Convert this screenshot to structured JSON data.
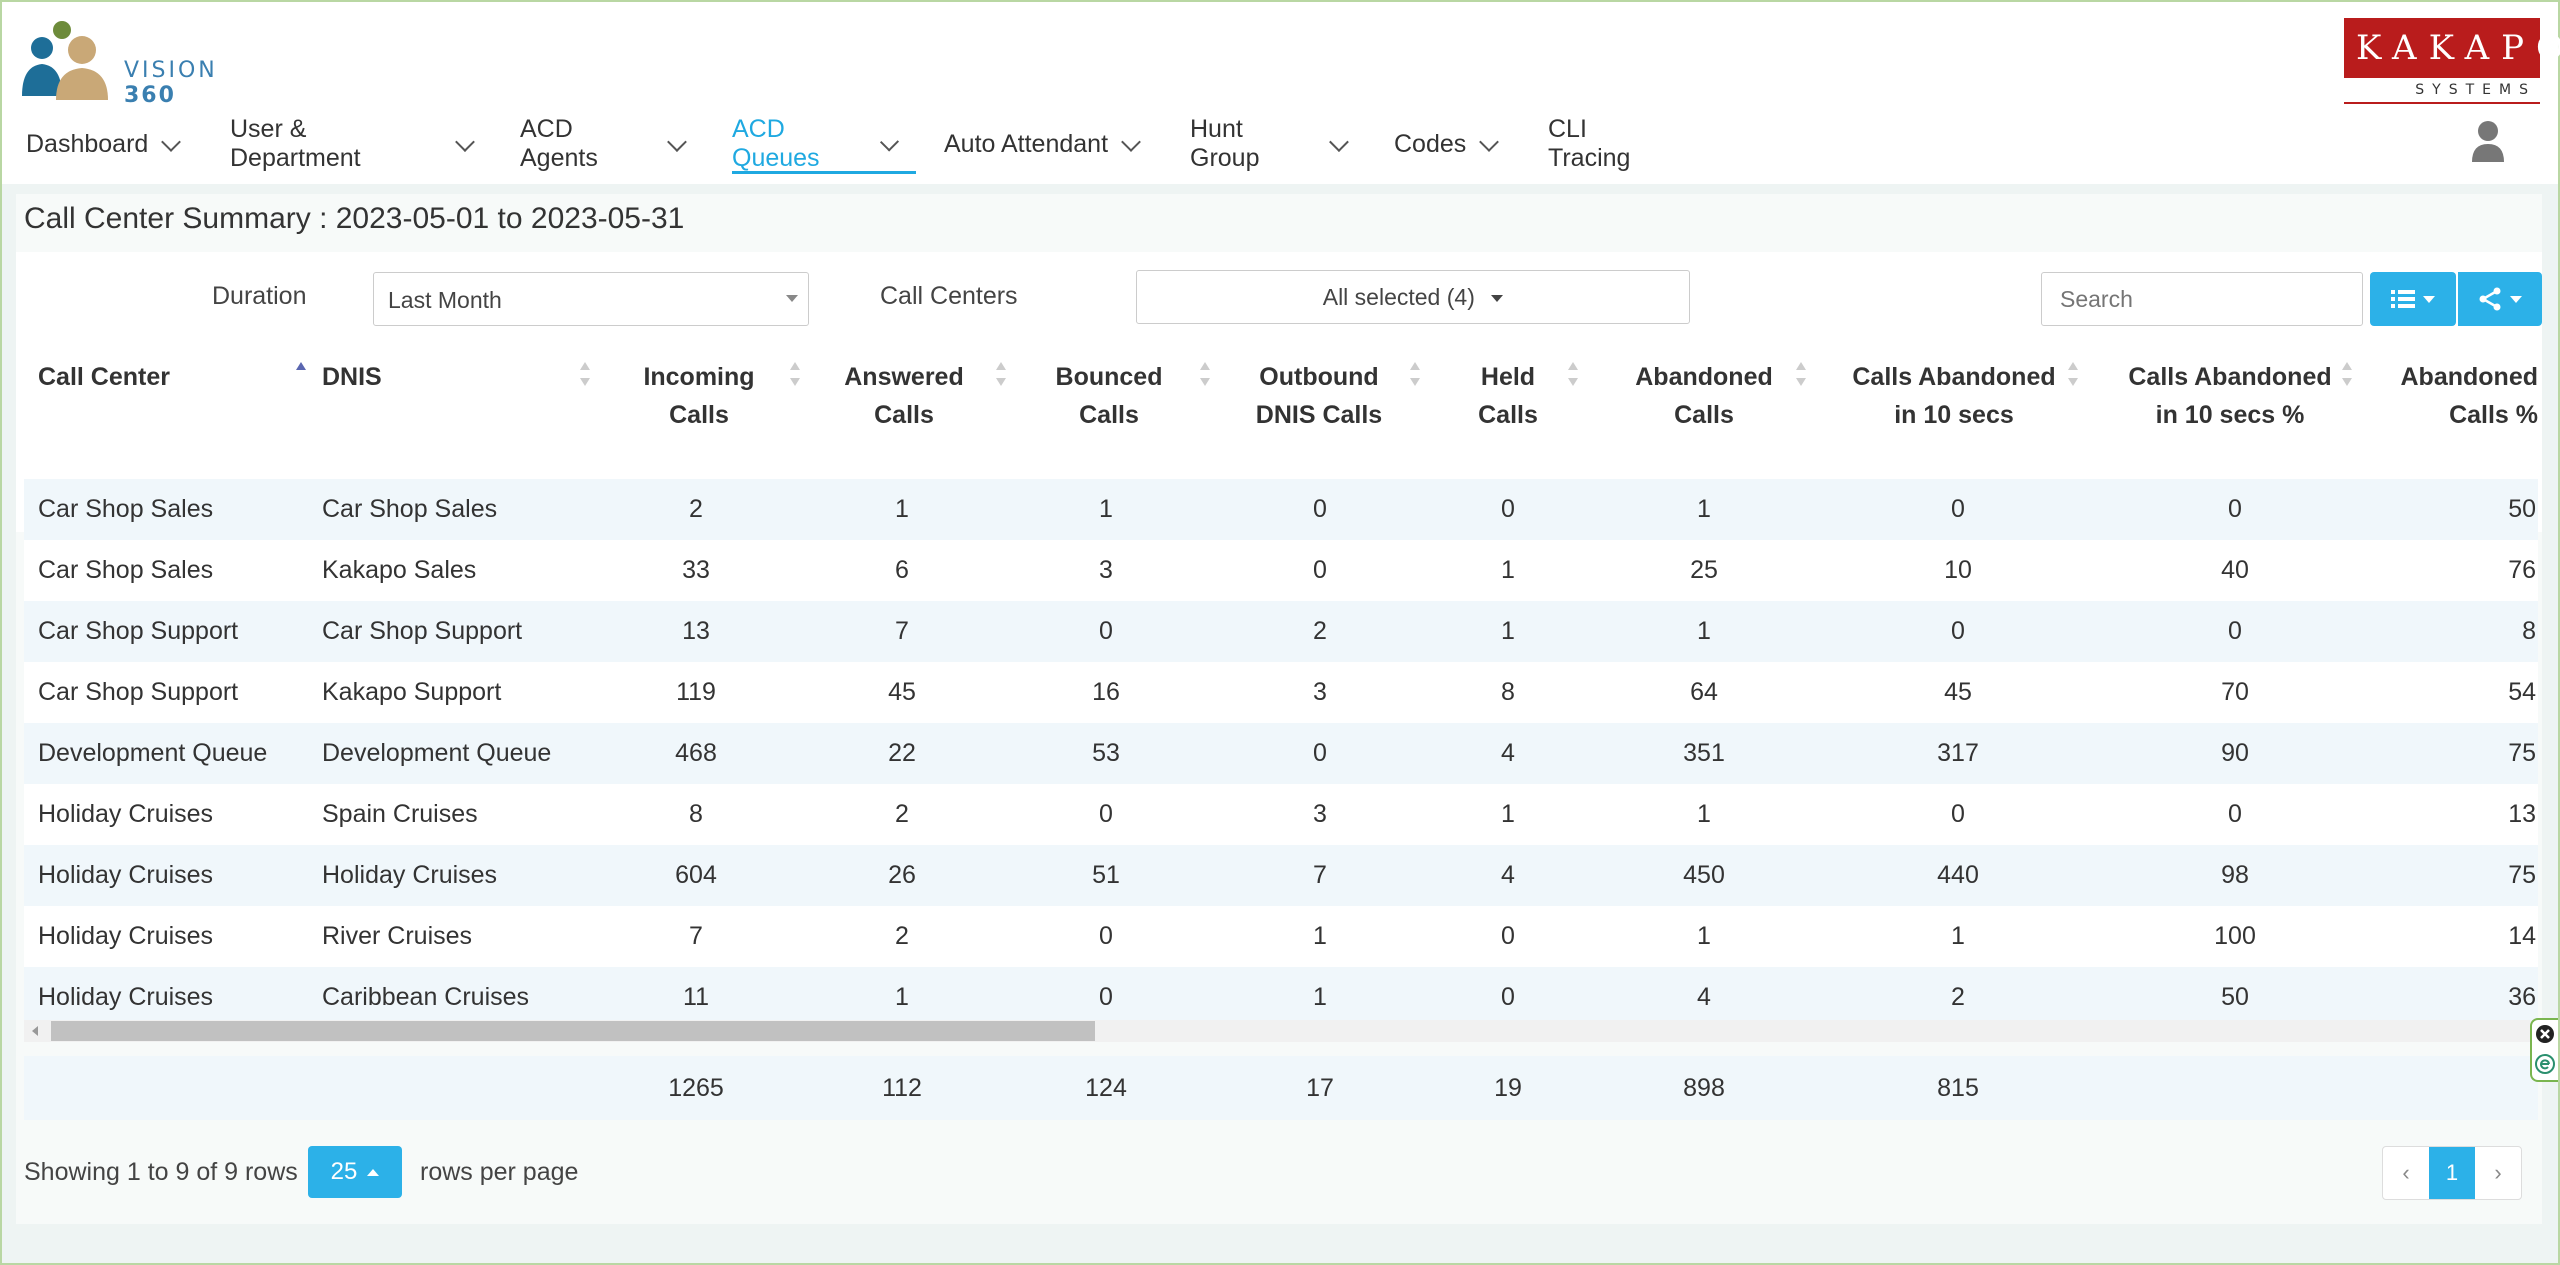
{
  "app": {
    "logo_text": "VISION",
    "logo_num": "360",
    "brand": "KAKAPO",
    "brand_sub": "SYSTEMS"
  },
  "nav": [
    {
      "label": "Dashboard",
      "dropdown": true
    },
    {
      "label": "User & Department",
      "dropdown": true
    },
    {
      "label": "ACD Agents",
      "dropdown": true
    },
    {
      "label": "ACD Queues",
      "dropdown": true,
      "active": true
    },
    {
      "label": "Auto Attendant",
      "dropdown": true
    },
    {
      "label": "Hunt Group",
      "dropdown": true
    },
    {
      "label": "Codes",
      "dropdown": true
    },
    {
      "label": "CLI Tracing",
      "dropdown": false
    }
  ],
  "page": {
    "title": "Call Center Summary : 2023-05-01 to 2023-05-31"
  },
  "filters": {
    "duration_label": "Duration",
    "duration_value": "Last Month",
    "call_centers_label": "Call Centers",
    "call_centers_value": "All selected (4)",
    "search_placeholder": "Search"
  },
  "table": {
    "headers": [
      [
        "Call Center"
      ],
      [
        "DNIS"
      ],
      [
        "Incoming",
        "Calls"
      ],
      [
        "Answered",
        "Calls"
      ],
      [
        "Bounced",
        "Calls"
      ],
      [
        "Outbound",
        "DNIS Calls"
      ],
      [
        "Held",
        "Calls"
      ],
      [
        "Abandoned",
        "Calls"
      ],
      [
        "Calls Abandoned",
        "in 10 secs"
      ],
      [
        "Calls Abandoned",
        "in 10 secs %"
      ],
      [
        "Abandoned",
        "Calls %"
      ]
    ],
    "rows": [
      [
        "Car Shop Sales",
        "Car Shop Sales",
        "2",
        "1",
        "1",
        "0",
        "0",
        "1",
        "0",
        "0",
        "50"
      ],
      [
        "Car Shop Sales",
        "Kakapo Sales",
        "33",
        "6",
        "3",
        "0",
        "1",
        "25",
        "10",
        "40",
        "76"
      ],
      [
        "Car Shop Support",
        "Car Shop Support",
        "13",
        "7",
        "0",
        "2",
        "1",
        "1",
        "0",
        "0",
        "8"
      ],
      [
        "Car Shop Support",
        "Kakapo Support",
        "119",
        "45",
        "16",
        "3",
        "8",
        "64",
        "45",
        "70",
        "54"
      ],
      [
        "Development Queue",
        "Development Queue",
        "468",
        "22",
        "53",
        "0",
        "4",
        "351",
        "317",
        "90",
        "75"
      ],
      [
        "Holiday Cruises",
        "Spain Cruises",
        "8",
        "2",
        "0",
        "3",
        "1",
        "1",
        "0",
        "0",
        "13"
      ],
      [
        "Holiday Cruises",
        "Holiday Cruises",
        "604",
        "26",
        "51",
        "7",
        "4",
        "450",
        "440",
        "98",
        "75"
      ],
      [
        "Holiday Cruises",
        "River Cruises",
        "7",
        "2",
        "0",
        "1",
        "0",
        "1",
        "1",
        "100",
        "14"
      ],
      [
        "Holiday Cruises",
        "Caribbean Cruises",
        "11",
        "1",
        "0",
        "1",
        "0",
        "4",
        "2",
        "50",
        "36"
      ]
    ],
    "totals": [
      "",
      "",
      "1265",
      "112",
      "124",
      "17",
      "19",
      "898",
      "815",
      "",
      ""
    ]
  },
  "pager": {
    "showing": "Showing 1 to 9 of 9 rows",
    "page_size": "25",
    "rows_per_page": "rows per page",
    "prev": "‹",
    "current": "1",
    "next": "›"
  },
  "colors": {
    "accent": "#2cb1e8",
    "brand_red": "#b91c1c",
    "row_alt": "#f0f7fb"
  }
}
